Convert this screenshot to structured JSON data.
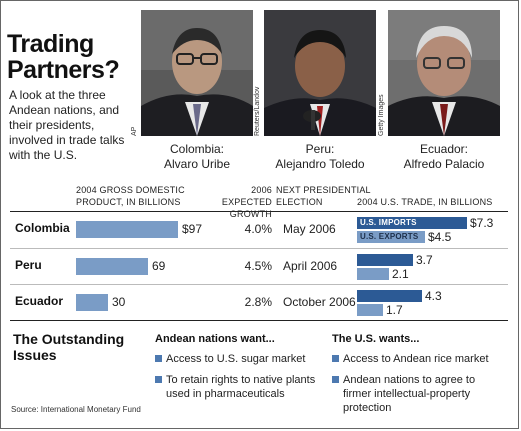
{
  "title_line1": "Trading",
  "title_line2": "Partners?",
  "intro": "A look at the three Andean nations, and their presidents, involved in trade talks with the U.S.",
  "photos": [
    {
      "credit": "AP",
      "country": "Colombia:",
      "president": "Alvaro Uribe"
    },
    {
      "credit": "Reuters/Landov",
      "country": "Peru:",
      "president": "Alejandro Toledo"
    },
    {
      "credit": "Getty Images",
      "country": "Ecuador:",
      "president": "Alfredo Palacio"
    }
  ],
  "column_headers": {
    "gdp_line1": "2004 GROSS DOMESTIC",
    "gdp_line2": "PRODUCT, IN BILLIONS",
    "growth_line1": "2006 EXPECTED",
    "growth_line2": "GROWTH",
    "election_line1": "NEXT PRESIDENTIAL",
    "election_line2": "ELECTION",
    "trade": "2004 U.S. TRADE, IN BILLIONS"
  },
  "chart_data": {
    "type": "table",
    "rows": [
      {
        "country": "Colombia",
        "gdp": 97,
        "gdp_label": "$97",
        "growth": "4.0%",
        "election": "May 2006",
        "imports": 7.3,
        "imports_label": "$7.3",
        "exports": 4.5,
        "exports_label": "$4.5"
      },
      {
        "country": "Peru",
        "gdp": 69,
        "gdp_label": "69",
        "growth": "4.5%",
        "election": "April 2006",
        "imports": 3.7,
        "imports_label": "3.7",
        "exports": 2.1,
        "exports_label": "2.1"
      },
      {
        "country": "Ecuador",
        "gdp": 30,
        "gdp_label": "30",
        "growth": "2.8%",
        "election": "October 2006",
        "imports": 4.3,
        "imports_label": "4.3",
        "exports": 1.7,
        "exports_label": "1.7"
      }
    ],
    "trade_legend": {
      "imports": "U.S. IMPORTS",
      "exports": "U.S. EXPORTS"
    },
    "colors": {
      "gdp": "#7a9cc6",
      "imports": "#2c5a95",
      "exports": "#7a9cc6"
    }
  },
  "issues": {
    "heading_line1": "The Outstanding",
    "heading_line2": "Issues",
    "andean_title": "Andean nations want...",
    "andean_items": [
      "Access to U.S. sugar market",
      "To retain rights to native plants used in pharmaceuticals"
    ],
    "us_title": "The U.S. wants...",
    "us_items": [
      "Access to Andean rice market",
      "Andean nations to agree to firmer intellectual-property protection"
    ]
  },
  "source": "Source: International Monetary Fund"
}
